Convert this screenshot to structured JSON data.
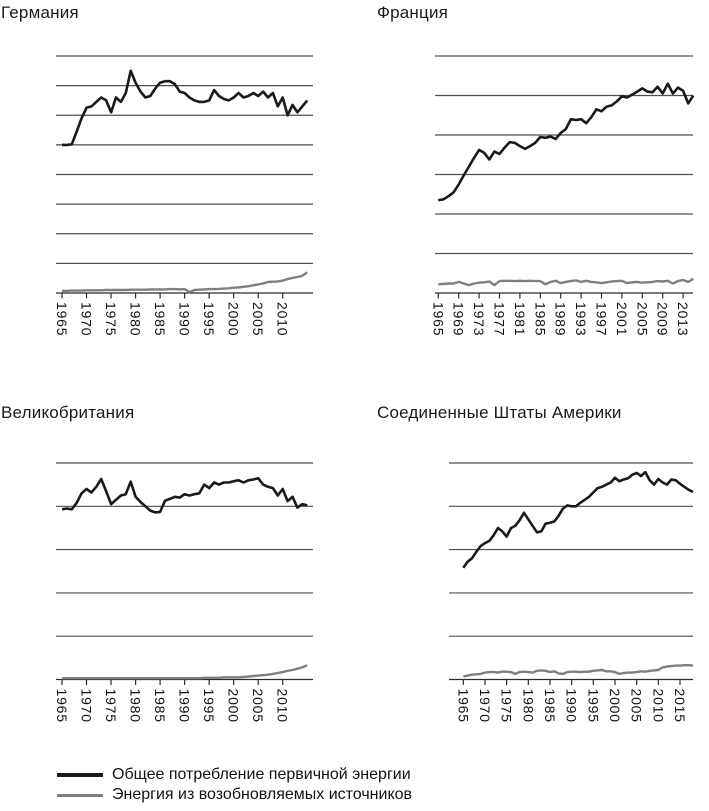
{
  "figure": {
    "description": "Four small-multiple line charts of energy consumption by country, 1965 onward",
    "y_axis_labels_visible": false,
    "value_units": "grid units (1 = one unlabeled gridline interval above the baseline axis)"
  },
  "colors": {
    "total_line": "#1a1a1a",
    "renewables_line": "#7f7f7f",
    "gridline": "#4f4f4f",
    "axis": "#2b2b2b"
  },
  "legend": {
    "entries": [
      {
        "label": "Общее потребление первичной энергии",
        "color": "#1a1a1a",
        "thickness": 3.5
      },
      {
        "label": "Энергия из возобновляемых источников",
        "color": "#7f7f7f",
        "thickness": 3
      }
    ]
  },
  "chart_data": [
    {
      "type": "line",
      "title": "Германия",
      "year_start": 1965,
      "x_tick_labels": [
        "1965",
        "1970",
        "1975",
        "1980",
        "1985",
        "1990",
        "1995",
        "2000",
        "2005",
        "2010"
      ],
      "y_axis": {
        "tick_labels_visible": false,
        "gridline_intervals": 8,
        "ylim": [
          0,
          8
        ]
      },
      "series": [
        {
          "name": "Общее потребление первичной энергии",
          "color": "#1a1a1a",
          "values": [
            5.0,
            5.0,
            5.02,
            5.45,
            5.9,
            6.25,
            6.3,
            6.45,
            6.6,
            6.5,
            6.1,
            6.6,
            6.45,
            6.75,
            7.5,
            7.1,
            6.8,
            6.6,
            6.65,
            6.9,
            7.1,
            7.15,
            7.15,
            7.05,
            6.8,
            6.75,
            6.6,
            6.5,
            6.45,
            6.45,
            6.5,
            6.85,
            6.65,
            6.55,
            6.5,
            6.6,
            6.75,
            6.6,
            6.65,
            6.75,
            6.65,
            6.8,
            6.6,
            6.75,
            6.3,
            6.6,
            6.0,
            6.35,
            6.1,
            6.3,
            6.5
          ]
        },
        {
          "name": "Энергия из возобновляемых источников",
          "color": "#7f7f7f",
          "values": [
            0.07,
            0.07,
            0.08,
            0.08,
            0.08,
            0.09,
            0.09,
            0.09,
            0.09,
            0.1,
            0.1,
            0.1,
            0.1,
            0.1,
            0.11,
            0.11,
            0.11,
            0.11,
            0.12,
            0.12,
            0.12,
            0.12,
            0.13,
            0.13,
            0.12,
            0.13,
            0.03,
            0.1,
            0.11,
            0.12,
            0.13,
            0.13,
            0.14,
            0.15,
            0.16,
            0.18,
            0.19,
            0.21,
            0.23,
            0.26,
            0.29,
            0.32,
            0.37,
            0.38,
            0.39,
            0.42,
            0.47,
            0.51,
            0.54,
            0.58,
            0.7
          ]
        }
      ]
    },
    {
      "type": "line",
      "title": "Франция",
      "year_start": 1965,
      "x_tick_labels": [
        "1965",
        "1969",
        "1973",
        "1977",
        "1981",
        "1985",
        "1989",
        "1993",
        "1997",
        "2001",
        "2005",
        "2009",
        "2013"
      ],
      "y_axis": {
        "tick_labels_visible": false,
        "gridline_intervals": 6,
        "ylim": [
          0,
          6
        ]
      },
      "series": [
        {
          "name": "Общее потребление первичной энергии",
          "color": "#1a1a1a",
          "values": [
            2.35,
            2.37,
            2.45,
            2.55,
            2.75,
            2.98,
            3.2,
            3.42,
            3.62,
            3.55,
            3.38,
            3.58,
            3.52,
            3.68,
            3.82,
            3.8,
            3.72,
            3.65,
            3.72,
            3.8,
            3.95,
            3.93,
            3.96,
            3.9,
            4.05,
            4.15,
            4.4,
            4.38,
            4.4,
            4.3,
            4.45,
            4.65,
            4.6,
            4.72,
            4.75,
            4.85,
            4.98,
            4.95,
            5.02,
            5.1,
            5.18,
            5.1,
            5.08,
            5.22,
            5.05,
            5.3,
            5.05,
            5.2,
            5.12,
            4.8,
            5.0
          ]
        },
        {
          "name": "Энергия из возобновляемых источников",
          "color": "#7f7f7f",
          "values": [
            0.22,
            0.23,
            0.24,
            0.24,
            0.28,
            0.24,
            0.2,
            0.24,
            0.26,
            0.27,
            0.29,
            0.2,
            0.3,
            0.31,
            0.31,
            0.3,
            0.31,
            0.3,
            0.31,
            0.3,
            0.3,
            0.22,
            0.28,
            0.31,
            0.25,
            0.28,
            0.3,
            0.32,
            0.28,
            0.31,
            0.28,
            0.27,
            0.25,
            0.27,
            0.29,
            0.3,
            0.31,
            0.25,
            0.27,
            0.28,
            0.26,
            0.27,
            0.28,
            0.3,
            0.29,
            0.31,
            0.24,
            0.3,
            0.33,
            0.28,
            0.36
          ]
        }
      ]
    },
    {
      "type": "line",
      "title": "Великобритания",
      "year_start": 1965,
      "x_tick_labels": [
        "1965",
        "1970",
        "1975",
        "1980",
        "1985",
        "1990",
        "1995",
        "2000",
        "2005",
        "2010"
      ],
      "y_axis": {
        "tick_labels_visible": false,
        "gridline_intervals": 5,
        "ylim": [
          0,
          5
        ]
      },
      "series": [
        {
          "name": "Общее потребление первичной энергии",
          "color": "#1a1a1a",
          "values": [
            3.93,
            3.95,
            3.93,
            4.08,
            4.3,
            4.4,
            4.32,
            4.45,
            4.63,
            4.35,
            4.05,
            4.15,
            4.25,
            4.28,
            4.57,
            4.22,
            4.1,
            4.0,
            3.9,
            3.86,
            3.87,
            4.13,
            4.17,
            4.22,
            4.2,
            4.28,
            4.25,
            4.28,
            4.3,
            4.5,
            4.42,
            4.55,
            4.5,
            4.55,
            4.55,
            4.58,
            4.6,
            4.55,
            4.6,
            4.62,
            4.65,
            4.5,
            4.45,
            4.42,
            4.25,
            4.4,
            4.12,
            4.22,
            3.97,
            4.05,
            4.02
          ]
        },
        {
          "name": "Энергия из возобновляемых источников",
          "color": "#7f7f7f",
          "values": [
            0.03,
            0.03,
            0.03,
            0.03,
            0.03,
            0.03,
            0.03,
            0.03,
            0.03,
            0.03,
            0.03,
            0.03,
            0.03,
            0.03,
            0.03,
            0.03,
            0.03,
            0.03,
            0.03,
            0.03,
            0.03,
            0.03,
            0.03,
            0.03,
            0.03,
            0.03,
            0.03,
            0.03,
            0.03,
            0.04,
            0.04,
            0.04,
            0.04,
            0.05,
            0.05,
            0.05,
            0.05,
            0.06,
            0.07,
            0.08,
            0.09,
            0.1,
            0.11,
            0.13,
            0.15,
            0.17,
            0.2,
            0.22,
            0.25,
            0.28,
            0.33
          ]
        }
      ]
    },
    {
      "type": "line",
      "title": "Соединенные Штаты Америки",
      "year_start": 1965,
      "x_tick_labels": [
        "1965",
        "1970",
        "1975",
        "1980",
        "1985",
        "1990",
        "1995",
        "2000",
        "2005",
        "2010",
        "2015"
      ],
      "y_axis": {
        "tick_labels_visible": false,
        "gridline_intervals": 5,
        "ylim": [
          0,
          5
        ]
      },
      "series": [
        {
          "name": "Общее потребление первичной энергии",
          "color": "#1a1a1a",
          "values": [
            2.58,
            2.72,
            2.8,
            2.95,
            3.08,
            3.15,
            3.2,
            3.33,
            3.5,
            3.42,
            3.3,
            3.5,
            3.55,
            3.68,
            3.85,
            3.7,
            3.55,
            3.4,
            3.42,
            3.6,
            3.62,
            3.65,
            3.78,
            3.95,
            4.02,
            4.0,
            4.0,
            4.08,
            4.15,
            4.22,
            4.32,
            4.42,
            4.45,
            4.5,
            4.55,
            4.66,
            4.58,
            4.62,
            4.65,
            4.73,
            4.77,
            4.7,
            4.79,
            4.6,
            4.5,
            4.63,
            4.55,
            4.5,
            4.62,
            4.6,
            4.52,
            4.45,
            4.38,
            4.33
          ]
        },
        {
          "name": "Энергия из возобновляемых источников",
          "color": "#7f7f7f",
          "values": [
            0.07,
            0.09,
            0.11,
            0.12,
            0.13,
            0.16,
            0.17,
            0.17,
            0.16,
            0.18,
            0.18,
            0.17,
            0.13,
            0.17,
            0.18,
            0.17,
            0.16,
            0.2,
            0.21,
            0.2,
            0.17,
            0.19,
            0.14,
            0.13,
            0.17,
            0.18,
            0.18,
            0.17,
            0.18,
            0.18,
            0.2,
            0.21,
            0.22,
            0.19,
            0.19,
            0.17,
            0.13,
            0.15,
            0.16,
            0.16,
            0.17,
            0.19,
            0.18,
            0.2,
            0.21,
            0.22,
            0.28,
            0.3,
            0.31,
            0.32,
            0.32,
            0.33,
            0.33,
            0.32
          ]
        }
      ]
    }
  ]
}
